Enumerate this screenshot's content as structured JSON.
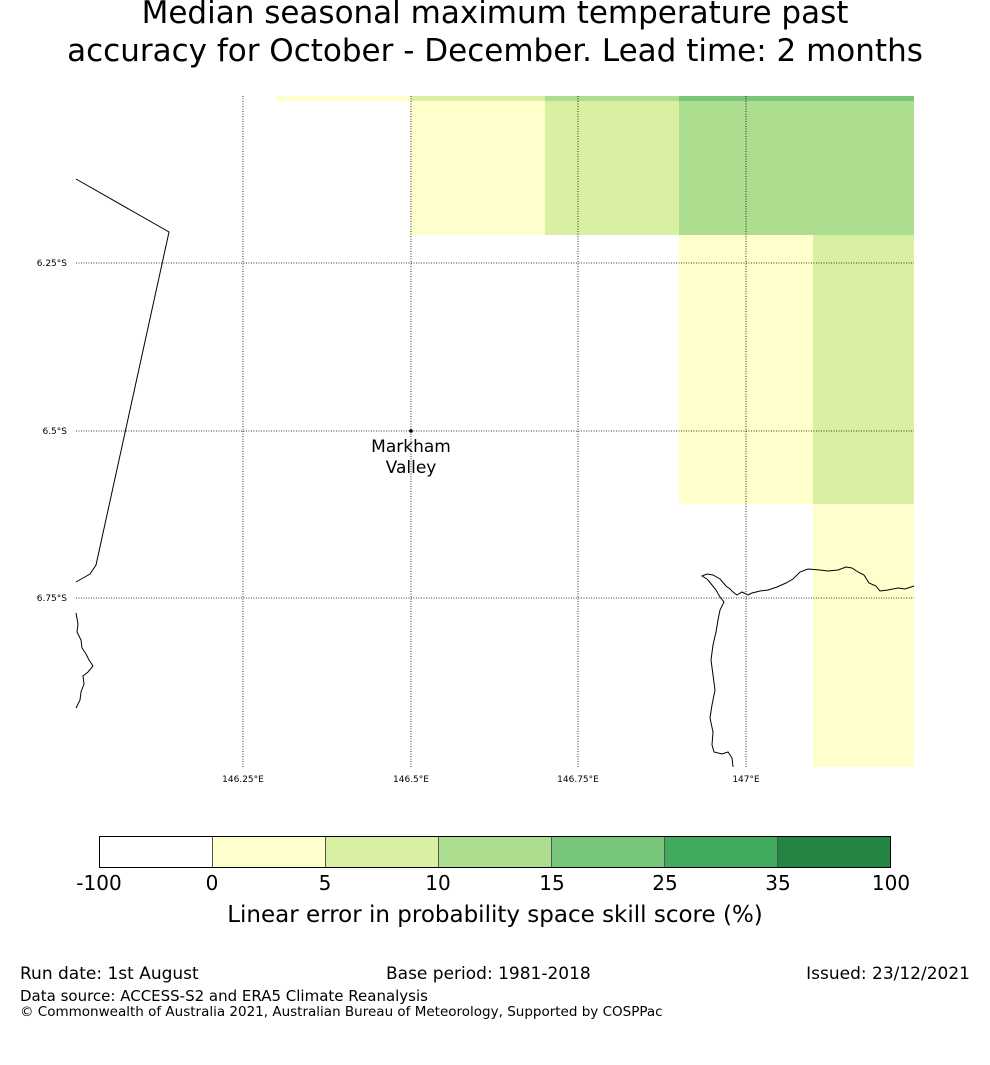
{
  "title": {
    "line1": "Median seasonal maximum temperature past",
    "line2": "accuracy for October - December. Lead time: 2 months"
  },
  "map": {
    "latitude_labels": [
      "6.25°S",
      "6.5°S",
      "6.75°S"
    ],
    "longitude_labels": [
      "146.25°E",
      "146.5°E",
      "146.75°E",
      "147°E"
    ],
    "location": {
      "name_line1": "Markham",
      "name_line2": "Valley"
    },
    "colors": {
      "0_5": "#ffffcc",
      "5_10": "#d9f0a3",
      "10_15": "#addd8e",
      "15_25": "#78c679",
      "25_35": "#41ab5d",
      "35_100": "#238443",
      "neg": "#ffffff"
    }
  },
  "colorbar": {
    "ticks": [
      "-100",
      "0",
      "5",
      "10",
      "15",
      "25",
      "35",
      "100"
    ],
    "colors": [
      "#ffffff",
      "#ffffcc",
      "#d9f0a3",
      "#addd8e",
      "#78c679",
      "#41ab5d",
      "#238443"
    ],
    "label": "Linear error in probability space skill score (%)"
  },
  "footer": {
    "run_date": "Run date: 1st August",
    "base_period": "Base period: 1981-2018",
    "issued": "Issued: 23/12/2021",
    "data_source": "Data source: ACCESS-S2 and ERA5 Climate Reanalysis",
    "copyright": "© Commonwealth of Australia 2021, Australian Bureau of Meteorology, Supported by COSPPac"
  }
}
